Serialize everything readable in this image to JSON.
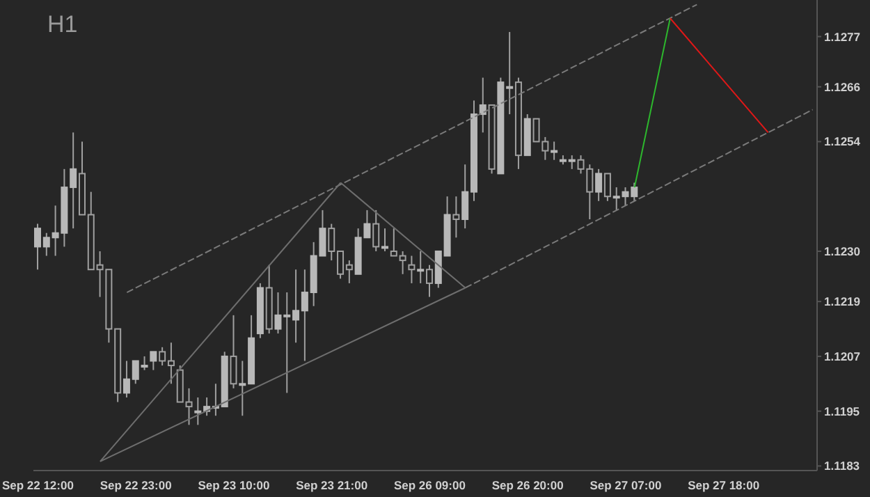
{
  "chart_data": {
    "type": "candlestick",
    "title": "H1",
    "categories": [
      "Sep 22 12:00",
      null,
      null,
      null,
      null,
      null,
      null,
      null,
      null,
      null,
      null,
      "Sep 22 23:00",
      null,
      null,
      null,
      null,
      null,
      null,
      null,
      null,
      null,
      null,
      "Sep 23 10:00",
      null,
      null,
      null,
      null,
      null,
      null,
      null,
      null,
      null,
      null,
      "Sep 23 21:00",
      null,
      null,
      null,
      null,
      null,
      null,
      null,
      null,
      null,
      null,
      "Sep 26 09:00",
      null,
      null,
      null,
      null,
      null,
      null,
      null,
      null,
      null,
      null,
      "Sep 26 20:00",
      null,
      null,
      null,
      null,
      null,
      null,
      null,
      null,
      null,
      null,
      "Sep 27 07:00",
      null,
      null,
      null,
      null,
      null,
      null,
      null,
      null,
      null,
      null,
      "Sep 27 18:00",
      null,
      null,
      null,
      null,
      null,
      null,
      null,
      null,
      null,
      null
    ],
    "ohlc": [
      [
        1.1231,
        1.1236,
        1.1226,
        1.1235
      ],
      [
        1.1231,
        1.1234,
        1.1229,
        1.1233
      ],
      [
        1.1233,
        1.124,
        1.1229,
        1.1234
      ],
      [
        1.1234,
        1.1248,
        1.1231,
        1.1244
      ],
      [
        1.1244,
        1.1256,
        1.1235,
        1.1248
      ],
      [
        1.1247,
        1.1254,
        1.1238,
        1.1238
      ],
      [
        1.1238,
        1.1243,
        1.1226,
        1.1226
      ],
      [
        1.1227,
        1.123,
        1.122,
        1.1226
      ],
      [
        1.1226,
        1.1226,
        1.121,
        1.1213
      ],
      [
        1.1213,
        1.1213,
        1.1197,
        1.1199
      ],
      [
        1.1199,
        1.1206,
        1.1198,
        1.1202
      ],
      [
        1.1202,
        1.1206,
        1.1201,
        1.1206
      ],
      [
        1.1205,
        1.1207,
        1.1204,
        1.1205
      ],
      [
        1.1206,
        1.1208,
        1.1204,
        1.1208
      ],
      [
        1.1208,
        1.1209,
        1.1205,
        1.1206
      ],
      [
        1.1206,
        1.121,
        1.1201,
        1.1205
      ],
      [
        1.1204,
        1.1205,
        1.1197,
        1.1197
      ],
      [
        1.1197,
        1.12,
        1.1192,
        1.1196
      ],
      [
        1.1195,
        1.1198,
        1.1192,
        1.1195
      ],
      [
        1.1195,
        1.1198,
        1.1194,
        1.1196
      ],
      [
        1.1196,
        1.1201,
        1.1194,
        1.1196
      ],
      [
        1.1196,
        1.1208,
        1.1196,
        1.1207
      ],
      [
        1.1207,
        1.1216,
        1.12,
        1.1201
      ],
      [
        1.1201,
        1.1206,
        1.1194,
        1.1201
      ],
      [
        1.1201,
        1.1216,
        1.1201,
        1.1211
      ],
      [
        1.1212,
        1.1223,
        1.1211,
        1.1222
      ],
      [
        1.1222,
        1.1227,
        1.1212,
        1.1213
      ],
      [
        1.1213,
        1.1221,
        1.1212,
        1.1216
      ],
      [
        1.1216,
        1.1221,
        1.1199,
        1.1216
      ],
      [
        1.1215,
        1.1226,
        1.121,
        1.1217
      ],
      [
        1.1217,
        1.1226,
        1.1206,
        1.1221
      ],
      [
        1.1221,
        1.1232,
        1.1218,
        1.1229
      ],
      [
        1.1229,
        1.1239,
        1.1229,
        1.1235
      ],
      [
        1.1235,
        1.1236,
        1.1228,
        1.123
      ],
      [
        1.123,
        1.123,
        1.1224,
        1.1225
      ],
      [
        1.1227,
        1.1228,
        1.1223,
        1.1226
      ],
      [
        1.1225,
        1.1235,
        1.1225,
        1.1233
      ],
      [
        1.1233,
        1.1239,
        1.1233,
        1.1236
      ],
      [
        1.1236,
        1.1239,
        1.123,
        1.1231
      ],
      [
        1.1231,
        1.1235,
        1.123,
        1.1231
      ],
      [
        1.123,
        1.1235,
        1.1229,
        1.1229
      ],
      [
        1.1229,
        1.123,
        1.1225,
        1.1228
      ],
      [
        1.1227,
        1.1229,
        1.1223,
        1.1226
      ],
      [
        1.1226,
        1.123,
        1.1223,
        1.1226
      ],
      [
        1.1226,
        1.1227,
        1.122,
        1.1223
      ],
      [
        1.1223,
        1.123,
        1.1222,
        1.123
      ],
      [
        1.1229,
        1.1242,
        1.1229,
        1.1238
      ],
      [
        1.1238,
        1.1242,
        1.1233,
        1.1237
      ],
      [
        1.1237,
        1.1249,
        1.1235,
        1.1243
      ],
      [
        1.1243,
        1.1263,
        1.1241,
        1.126
      ],
      [
        1.126,
        1.1268,
        1.1256,
        1.1262
      ],
      [
        1.1262,
        1.1262,
        1.1247,
        1.1248
      ],
      [
        1.1247,
        1.1268,
        1.1247,
        1.1267
      ],
      [
        1.1266,
        1.1278,
        1.126,
        1.1266
      ],
      [
        1.1267,
        1.1268,
        1.1248,
        1.1251
      ],
      [
        1.1251,
        1.126,
        1.1251,
        1.1259
      ],
      [
        1.1259,
        1.1259,
        1.1254,
        1.1254
      ],
      [
        1.1254,
        1.1255,
        1.125,
        1.1252
      ],
      [
        1.1252,
        1.1254,
        1.125,
        1.1252
      ],
      [
        1.125,
        1.1251,
        1.1249,
        1.125
      ],
      [
        1.125,
        1.1251,
        1.1248,
        1.125
      ],
      [
        1.125,
        1.1251,
        1.1247,
        1.1248
      ],
      [
        1.1248,
        1.1249,
        1.1237,
        1.1243
      ],
      [
        1.1243,
        1.1248,
        1.1241,
        1.1247
      ],
      [
        1.1247,
        1.1247,
        1.1241,
        1.1242
      ],
      [
        1.1242,
        1.1244,
        1.1239,
        1.1242
      ],
      [
        1.1242,
        1.1244,
        1.124,
        1.1243
      ],
      [
        1.1242,
        1.1245,
        1.1241,
        1.1244
      ],
      null,
      null,
      null,
      null,
      null,
      null,
      null,
      null,
      null,
      null,
      null,
      null,
      null,
      null,
      null,
      null,
      null,
      null,
      null,
      null
    ],
    "ylim": [
      1.1182,
      1.1285
    ],
    "yticks": [
      1.1183,
      1.1195,
      1.1207,
      1.1219,
      {
        "value": 1.123,
        "label": "1.1230"
      },
      1.1254,
      1.1266,
      1.1277
    ],
    "series": [
      {
        "type": "line",
        "color": "#7a7a7a",
        "line_style": "dashed",
        "values": [
          null,
          null,
          null,
          null,
          null,
          null,
          null,
          null,
          null,
          null,
          1.1221,
          null,
          null,
          null,
          null,
          null,
          null,
          null,
          null,
          null,
          null,
          null,
          null,
          null,
          null,
          null,
          null,
          null,
          null,
          null,
          null,
          null,
          null,
          null,
          null,
          null,
          null,
          null,
          null,
          null,
          null,
          null,
          null,
          null,
          null,
          null,
          null,
          null,
          null,
          null,
          null,
          null,
          null,
          null,
          null,
          null,
          null,
          null,
          null,
          null,
          null,
          null,
          null,
          null,
          null,
          null,
          null,
          null,
          null,
          null,
          null,
          null,
          null,
          null,
          1.1284,
          null,
          null,
          null,
          null,
          null,
          null,
          null,
          null,
          null,
          null,
          null,
          null,
          null
        ]
      },
      {
        "type": "line",
        "color": "#7a7a7a",
        "line_style": "dashed",
        "values": [
          null,
          null,
          null,
          null,
          null,
          null,
          null,
          null,
          null,
          null,
          null,
          null,
          null,
          null,
          null,
          null,
          null,
          null,
          null,
          null,
          null,
          null,
          null,
          null,
          null,
          null,
          null,
          null,
          null,
          null,
          null,
          null,
          null,
          null,
          null,
          null,
          null,
          null,
          null,
          null,
          null,
          null,
          null,
          null,
          null,
          null,
          null,
          null,
          1.1222,
          null,
          null,
          null,
          null,
          null,
          null,
          null,
          null,
          null,
          null,
          null,
          null,
          null,
          null,
          null,
          null,
          null,
          null,
          null,
          null,
          null,
          null,
          null,
          null,
          null,
          null,
          null,
          null,
          null,
          null,
          null,
          null,
          null,
          null,
          null,
          null,
          null,
          null,
          1.1261
        ]
      },
      {
        "type": "line",
        "color": "#6e6e6e",
        "line_style": "solid",
        "values": [
          null,
          null,
          null,
          null,
          null,
          null,
          null,
          1.1184,
          null,
          null,
          null,
          null,
          null,
          null,
          null,
          null,
          null,
          null,
          null,
          null,
          null,
          null,
          null,
          null,
          null,
          null,
          null,
          null,
          null,
          null,
          null,
          null,
          null,
          null,
          1.1245,
          null,
          null,
          null,
          null,
          null,
          null,
          null,
          null,
          null,
          null,
          null,
          null,
          null,
          null,
          null,
          null,
          null,
          null,
          null,
          null,
          null,
          null,
          null,
          null,
          null,
          null,
          null,
          null,
          null,
          null,
          null,
          null,
          null,
          null,
          null,
          null,
          null,
          null,
          null,
          null,
          null,
          null,
          null,
          null,
          null,
          null,
          null,
          null,
          null,
          null,
          null,
          null,
          null
        ]
      },
      {
        "type": "line",
        "color": "#6e6e6e",
        "line_style": "solid",
        "values": [
          null,
          null,
          null,
          null,
          null,
          null,
          null,
          null,
          null,
          null,
          null,
          null,
          null,
          null,
          null,
          null,
          null,
          null,
          null,
          null,
          null,
          null,
          null,
          null,
          null,
          null,
          null,
          null,
          null,
          null,
          null,
          null,
          null,
          null,
          1.1245,
          null,
          null,
          null,
          null,
          null,
          null,
          null,
          null,
          null,
          null,
          null,
          null,
          null,
          1.1222,
          null,
          null,
          null,
          null,
          null,
          null,
          null,
          null,
          null,
          null,
          null,
          null,
          null,
          null,
          null,
          null,
          null,
          null,
          null,
          null,
          null,
          null,
          null,
          null,
          null,
          null,
          null,
          null,
          null,
          null,
          null,
          null,
          null,
          null,
          null,
          null,
          null,
          null,
          null
        ]
      },
      {
        "type": "line",
        "color": "#6e6e6e",
        "line_style": "solid",
        "values": [
          null,
          null,
          null,
          null,
          null,
          null,
          null,
          1.1184,
          null,
          null,
          null,
          null,
          null,
          null,
          null,
          null,
          null,
          null,
          null,
          null,
          null,
          null,
          null,
          null,
          null,
          null,
          null,
          null,
          null,
          null,
          null,
          null,
          null,
          null,
          null,
          null,
          null,
          null,
          null,
          null,
          null,
          null,
          null,
          null,
          null,
          null,
          null,
          null,
          1.1222,
          null,
          null,
          null,
          null,
          null,
          null,
          null,
          null,
          null,
          null,
          null,
          null,
          null,
          null,
          null,
          null,
          null,
          null,
          null,
          null,
          null,
          null,
          null,
          null,
          null,
          null,
          null,
          null,
          null,
          null,
          null,
          null,
          null,
          null,
          null,
          null,
          null,
          null,
          null
        ]
      },
      {
        "type": "line",
        "color": "#2db82d",
        "line_style": "solid",
        "values": [
          null,
          null,
          null,
          null,
          null,
          null,
          null,
          null,
          null,
          null,
          null,
          null,
          null,
          null,
          null,
          null,
          null,
          null,
          null,
          null,
          null,
          null,
          null,
          null,
          null,
          null,
          null,
          null,
          null,
          null,
          null,
          null,
          null,
          null,
          null,
          null,
          null,
          null,
          null,
          null,
          null,
          null,
          null,
          null,
          null,
          null,
          null,
          null,
          null,
          null,
          null,
          null,
          null,
          null,
          null,
          null,
          null,
          null,
          null,
          null,
          null,
          null,
          null,
          null,
          null,
          null,
          null,
          1.1244,
          null,
          null,
          null,
          1.1281,
          null,
          null,
          null,
          null,
          null,
          null,
          null,
          null,
          null,
          null,
          null,
          null,
          null,
          null,
          null,
          null
        ]
      },
      {
        "type": "line",
        "color": "#e01818",
        "line_style": "solid",
        "values": [
          null,
          null,
          null,
          null,
          null,
          null,
          null,
          null,
          null,
          null,
          null,
          null,
          null,
          null,
          null,
          null,
          null,
          null,
          null,
          null,
          null,
          null,
          null,
          null,
          null,
          null,
          null,
          null,
          null,
          null,
          null,
          null,
          null,
          null,
          null,
          null,
          null,
          null,
          null,
          null,
          null,
          null,
          null,
          null,
          null,
          null,
          null,
          null,
          null,
          null,
          null,
          null,
          null,
          null,
          null,
          null,
          null,
          null,
          null,
          null,
          null,
          null,
          null,
          null,
          null,
          null,
          null,
          null,
          null,
          null,
          null,
          1.1281,
          null,
          null,
          null,
          null,
          null,
          null,
          null,
          null,
          null,
          null,
          1.1256,
          null,
          null,
          null,
          null,
          null
        ]
      }
    ]
  }
}
